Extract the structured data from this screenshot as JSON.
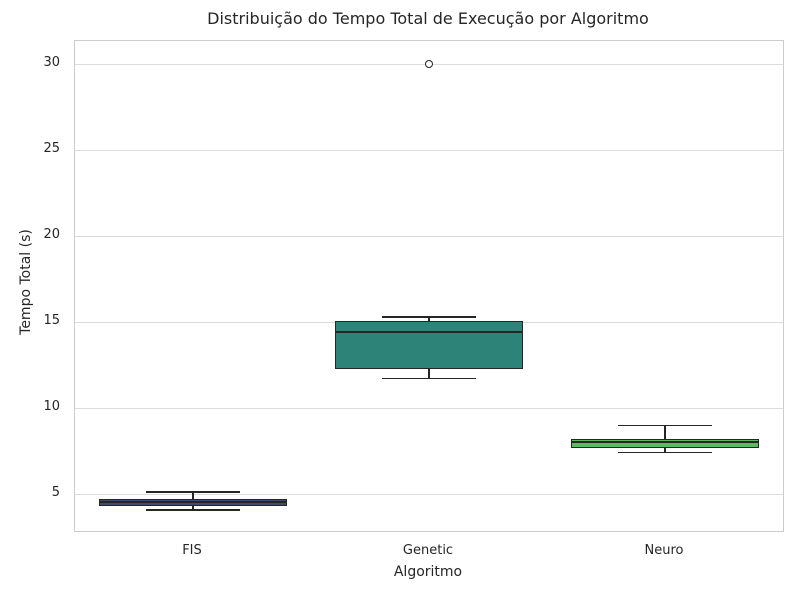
{
  "chart_data": {
    "type": "box",
    "title": "Distribuição do Tempo Total de Execução por Algoritmo",
    "xlabel": "Algoritmo",
    "ylabel": "Tempo Total (s)",
    "categories": [
      "FIS",
      "Genetic",
      "Neuro"
    ],
    "yticks": [
      5,
      10,
      15,
      20,
      25,
      30
    ],
    "ylim": [
      2.88,
      31.34
    ],
    "grid": "horizontal-only",
    "legend": "none",
    "box_width_fraction": 0.8,
    "series": [
      {
        "category": "FIS",
        "whisker_low": 4.1,
        "q1": 4.35,
        "median": 4.55,
        "q3": 4.75,
        "whisker_high": 5.15,
        "outliers": [],
        "color": "#3e4d6d"
      },
      {
        "category": "Genetic",
        "whisker_low": 11.75,
        "q1": 12.3,
        "median": 14.45,
        "q3": 15.1,
        "whisker_high": 15.3,
        "outliers": [
          30.0
        ],
        "color": "#2e8378"
      },
      {
        "category": "Neuro",
        "whisker_low": 7.45,
        "q1": 7.7,
        "median": 8.05,
        "q3": 8.25,
        "whisker_high": 9.0,
        "outliers": [],
        "color": "#5fb961"
      }
    ]
  },
  "colors": {
    "background": "#ffffff",
    "grid": "#dcdcdc",
    "frame": "#cccccc",
    "line": "#262626",
    "text": "#262626"
  }
}
